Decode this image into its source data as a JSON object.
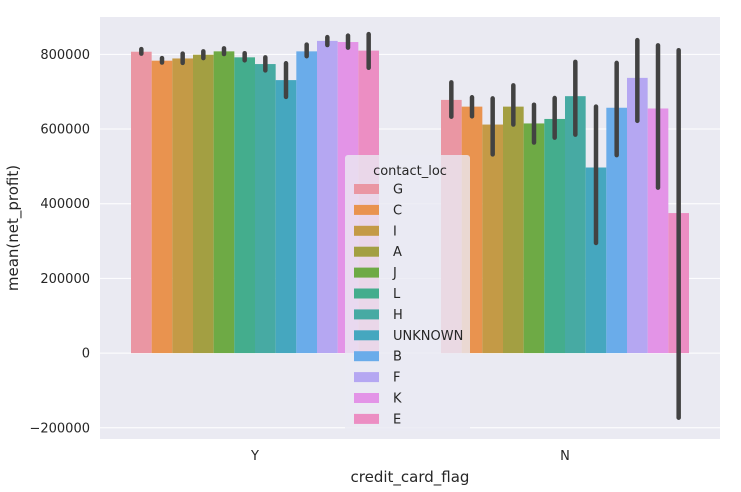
{
  "chart_data": {
    "type": "bar",
    "xlabel": "credit_card_flag",
    "ylabel": "mean(net_profit)",
    "categories": [
      "Y",
      "N"
    ],
    "ylim": [
      -230000,
      900000
    ],
    "yticks": [
      -200000,
      0,
      200000,
      400000,
      600000,
      800000
    ],
    "ytick_labels": [
      "−200000",
      "0",
      "200000",
      "400000",
      "600000",
      "800000"
    ],
    "grid": true,
    "legend": {
      "title": "contact_loc",
      "placement": "center"
    },
    "series": [
      {
        "name": "G",
        "color": "#ea96a3",
        "values": [
          807000,
          678000
        ],
        "ci": [
          [
            802000,
            814000
          ],
          [
            633000,
            725000
          ]
        ]
      },
      {
        "name": "C",
        "color": "#e9934f",
        "values": [
          783000,
          660000
        ],
        "ci": [
          [
            778000,
            790000
          ],
          [
            634000,
            685000
          ]
        ]
      },
      {
        "name": "I",
        "color": "#c49a46",
        "values": [
          789000,
          612000
        ],
        "ci": [
          [
            777000,
            802000
          ],
          [
            532000,
            682000
          ]
        ]
      },
      {
        "name": "A",
        "color": "#a39f42",
        "values": [
          799000,
          660000
        ],
        "ci": [
          [
            790000,
            808000
          ],
          [
            612000,
            717000
          ]
        ]
      },
      {
        "name": "J",
        "color": "#6eaa45",
        "values": [
          808000,
          615000
        ],
        "ci": [
          [
            801000,
            816000
          ],
          [
            564000,
            665000
          ]
        ]
      },
      {
        "name": "L",
        "color": "#44ad8d",
        "values": [
          792000,
          627000
        ],
        "ci": [
          [
            784000,
            803000
          ],
          [
            577000,
            683000
          ]
        ]
      },
      {
        "name": "H",
        "color": "#47aaa3",
        "values": [
          774000,
          688000
        ],
        "ci": [
          [
            757000,
            792000
          ],
          [
            585000,
            780000
          ]
        ]
      },
      {
        "name": "UNKNOWN",
        "color": "#45a7bf",
        "values": [
          731000,
          497000
        ],
        "ci": [
          [
            686000,
            776000
          ],
          [
            295000,
            660000
          ]
        ]
      },
      {
        "name": "B",
        "color": "#6aacea",
        "values": [
          808000,
          657000
        ],
        "ci": [
          [
            795000,
            826000
          ],
          [
            530000,
            777000
          ]
        ]
      },
      {
        "name": "F",
        "color": "#b5a7f2",
        "values": [
          836000,
          737000
        ],
        "ci": [
          [
            825000,
            846000
          ],
          [
            622000,
            838000
          ]
        ]
      },
      {
        "name": "K",
        "color": "#e394e7",
        "values": [
          833000,
          655000
        ],
        "ci": [
          [
            818000,
            850000
          ],
          [
            443000,
            824000
          ]
        ]
      },
      {
        "name": "E",
        "color": "#ec8ec3",
        "values": [
          810000,
          375000
        ],
        "ci": [
          [
            764000,
            854000
          ],
          [
            -173000,
            811000
          ]
        ]
      }
    ]
  }
}
